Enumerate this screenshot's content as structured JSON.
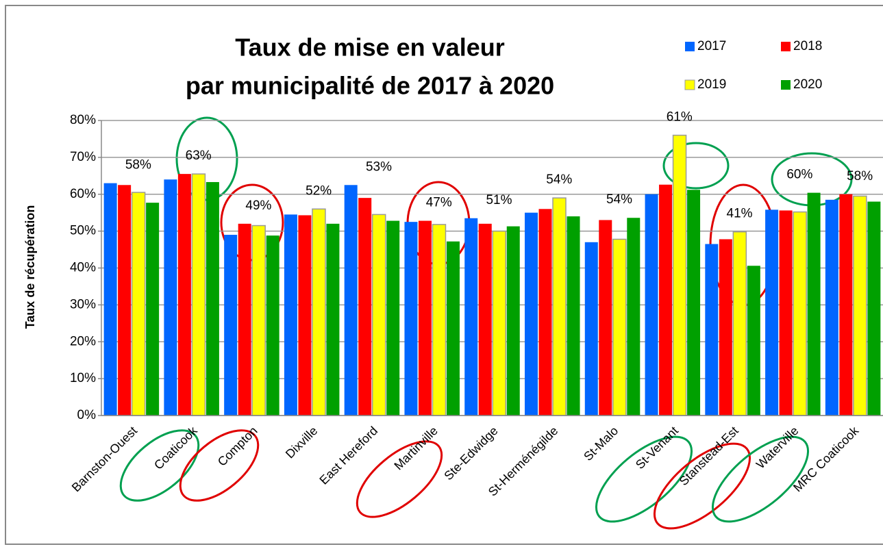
{
  "chart_data": {
    "type": "bar",
    "title": [
      "Taux de mise en valeur",
      "par municipalité de 2017 à 2020"
    ],
    "y_label": "Taux de récupération",
    "categories": [
      "Barnston-Ouest",
      "Coaticook",
      "Compton",
      "Dixville",
      "East Hereford",
      "Martinville",
      "Ste-Edwidge",
      "St-Herménégilde",
      "St-Malo",
      "St-Venant",
      "Stanstead-Est",
      "Waterville",
      "MRC Coaticook"
    ],
    "series": [
      {
        "name": "2017",
        "color": "#0066ff",
        "values": [
          63,
          64,
          49,
          54.5,
          62.5,
          52.5,
          53.5,
          55,
          47,
          60,
          46.5,
          55.8,
          58.5
        ]
      },
      {
        "name": "2018",
        "color": "#ff0000",
        "values": [
          62.5,
          65.5,
          52,
          54.3,
          59,
          52.8,
          52,
          56,
          53,
          62.6,
          47.8,
          55.6,
          60
        ]
      },
      {
        "name": "2019",
        "color": "#ffff00",
        "values": [
          60.5,
          65.5,
          51.5,
          56,
          54.5,
          51.8,
          50,
          59,
          47.8,
          76,
          49.8,
          55.2,
          59.5
        ]
      },
      {
        "name": "2020",
        "color": "#00a000",
        "values": [
          57.7,
          63.3,
          48.8,
          52,
          52.8,
          47.2,
          51.3,
          54,
          53.6,
          61.2,
          40.6,
          60.4,
          58
        ],
        "value_labels": [
          "58%",
          "63%",
          "49%",
          "52%",
          "53%",
          "47%",
          "51%",
          "54%",
          "54%",
          "61%",
          "41%",
          "60%",
          "58%"
        ]
      }
    ],
    "ylim": [
      0,
      80
    ],
    "yticks": [
      {
        "value": 0,
        "label": "0%"
      },
      {
        "value": 10,
        "label": "10%"
      },
      {
        "value": 20,
        "label": "20%"
      },
      {
        "value": 30,
        "label": "30%"
      },
      {
        "value": 40,
        "label": "40%"
      },
      {
        "value": 50,
        "label": "50%"
      },
      {
        "value": 60,
        "label": "60%"
      },
      {
        "value": 70,
        "label": "70%"
      },
      {
        "value": 80,
        "label": "80%"
      }
    ],
    "grid": true,
    "legend": "top-right"
  }
}
